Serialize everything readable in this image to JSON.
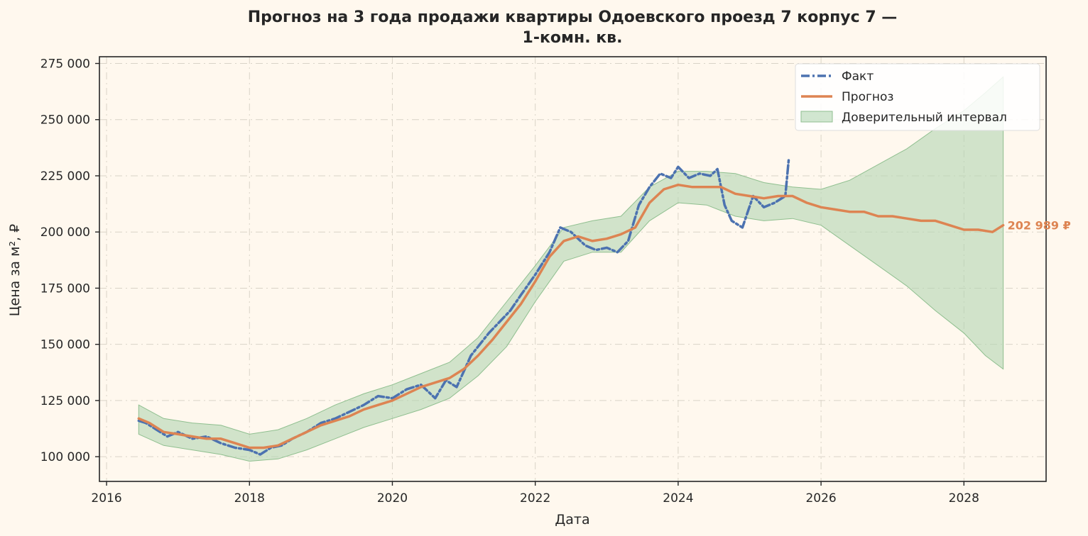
{
  "chart_data": {
    "type": "line",
    "title_line1": "Прогноз на 3 года продажи квартиры  Одоевского проезд 7 корпус 7 —",
    "title_line2": "1-комн. кв.",
    "xlabel": "Дата",
    "ylabel": "Цена за м², ₽",
    "xlim": [
      2015.9,
      2029.15
    ],
    "ylim": [
      89000,
      278000
    ],
    "x_ticks": [
      2016,
      2018,
      2020,
      2022,
      2024,
      2026,
      2028
    ],
    "x_tick_labels": [
      "2016",
      "2018",
      "2020",
      "2022",
      "2024",
      "2026",
      "2028"
    ],
    "y_ticks": [
      100000,
      125000,
      150000,
      175000,
      200000,
      225000,
      250000,
      275000
    ],
    "y_tick_labels": [
      "100 000",
      "125 000",
      "150 000",
      "175 000",
      "200 000",
      "225 000",
      "250 000",
      "275 000"
    ],
    "grid": true,
    "legend_position": "top-right",
    "colors": {
      "fact": "#4c72b0",
      "forecast": "#dd8452",
      "interval": "#b3d6b3",
      "interval_edge": "#8fbf8f",
      "background": "#fff8ee"
    },
    "series": [
      {
        "name": "Факт",
        "style": "dash-dot",
        "x": [
          2016.45,
          2016.55,
          2016.7,
          2016.85,
          2017.0,
          2017.2,
          2017.4,
          2017.6,
          2017.8,
          2018.0,
          2018.15,
          2018.3,
          2018.45,
          2018.6,
          2018.8,
          2019.0,
          2019.2,
          2019.4,
          2019.6,
          2019.8,
          2020.0,
          2020.2,
          2020.4,
          2020.6,
          2020.75,
          2020.9,
          2021.0,
          2021.1,
          2021.2,
          2021.35,
          2021.5,
          2021.65,
          2021.8,
          2022.0,
          2022.1,
          2022.2,
          2022.35,
          2022.5,
          2022.7,
          2022.85,
          2023.0,
          2023.15,
          2023.3,
          2023.45,
          2023.6,
          2023.75,
          2023.9,
          2024.0,
          2024.15,
          2024.3,
          2024.45,
          2024.55,
          2024.65,
          2024.75,
          2024.9,
          2025.05,
          2025.2,
          2025.35,
          2025.5,
          2025.55
        ],
        "y": [
          116000,
          115000,
          112000,
          109000,
          111000,
          108000,
          109000,
          106000,
          104000,
          103000,
          101000,
          104000,
          105000,
          108000,
          111000,
          115000,
          117000,
          120000,
          123000,
          127000,
          126000,
          130000,
          132000,
          126000,
          134000,
          131000,
          138000,
          145000,
          149000,
          155000,
          160000,
          165000,
          172000,
          181000,
          186000,
          191000,
          202000,
          200000,
          194000,
          192000,
          193000,
          191000,
          196000,
          212000,
          220000,
          226000,
          224000,
          229000,
          224000,
          226000,
          225000,
          228000,
          212000,
          205000,
          202000,
          216000,
          211000,
          213000,
          216000,
          233000
        ]
      },
      {
        "name": "Прогноз",
        "style": "solid",
        "x": [
          2016.45,
          2016.6,
          2016.8,
          2017.0,
          2017.2,
          2017.4,
          2017.6,
          2017.8,
          2018.0,
          2018.2,
          2018.4,
          2018.6,
          2018.8,
          2019.0,
          2019.2,
          2019.4,
          2019.6,
          2019.8,
          2020.0,
          2020.2,
          2020.4,
          2020.6,
          2020.8,
          2021.0,
          2021.2,
          2021.4,
          2021.6,
          2021.8,
          2022.0,
          2022.2,
          2022.4,
          2022.6,
          2022.8,
          2023.0,
          2023.2,
          2023.4,
          2023.6,
          2023.8,
          2024.0,
          2024.2,
          2024.4,
          2024.6,
          2024.8,
          2025.0,
          2025.2,
          2025.4,
          2025.6,
          2025.8,
          2026.0,
          2026.2,
          2026.4,
          2026.6,
          2026.8,
          2027.0,
          2027.2,
          2027.4,
          2027.6,
          2027.8,
          2028.0,
          2028.2,
          2028.4,
          2028.55
        ],
        "y": [
          117000,
          115000,
          111000,
          110000,
          109000,
          108000,
          108000,
          106000,
          104000,
          104000,
          105000,
          108000,
          111000,
          114000,
          116000,
          118000,
          121000,
          123000,
          125000,
          128000,
          131000,
          133000,
          135000,
          139000,
          145000,
          152000,
          160000,
          168000,
          178000,
          189000,
          196000,
          198000,
          196000,
          197000,
          199000,
          202000,
          213000,
          219000,
          221000,
          220000,
          220000,
          220000,
          217000,
          216000,
          215000,
          216000,
          216000,
          213000,
          211000,
          210000,
          209000,
          209000,
          207000,
          207000,
          206000,
          205000,
          205000,
          203000,
          201000,
          201000,
          200000,
          202989
        ]
      }
    ],
    "confidence_interval": {
      "name": "Доверительный интервал",
      "x": [
        2016.45,
        2016.8,
        2017.2,
        2017.6,
        2018.0,
        2018.4,
        2018.8,
        2019.2,
        2019.6,
        2020.0,
        2020.4,
        2020.8,
        2021.2,
        2021.6,
        2022.0,
        2022.4,
        2022.8,
        2023.2,
        2023.6,
        2024.0,
        2024.4,
        2024.8,
        2025.2,
        2025.6,
        2026.0,
        2026.4,
        2026.8,
        2027.2,
        2027.6,
        2028.0,
        2028.3,
        2028.55
      ],
      "lower": [
        110000,
        105000,
        103000,
        101000,
        98000,
        99000,
        103000,
        108000,
        113000,
        117000,
        121000,
        126000,
        136000,
        149000,
        169000,
        187000,
        191000,
        191000,
        205000,
        213000,
        212000,
        207000,
        205000,
        206000,
        203000,
        194000,
        185000,
        176000,
        165000,
        155000,
        145000,
        139000
      ],
      "upper": [
        123000,
        117000,
        115000,
        114000,
        110000,
        112000,
        117000,
        123000,
        128000,
        132000,
        137000,
        142000,
        153000,
        169000,
        185000,
        202000,
        205000,
        207000,
        220000,
        227000,
        227000,
        226000,
        222000,
        220000,
        219000,
        223000,
        230000,
        237000,
        246000,
        254000,
        262000,
        269000
      ]
    },
    "end_label": "202 989 ₽",
    "end_label_value": 202989
  }
}
